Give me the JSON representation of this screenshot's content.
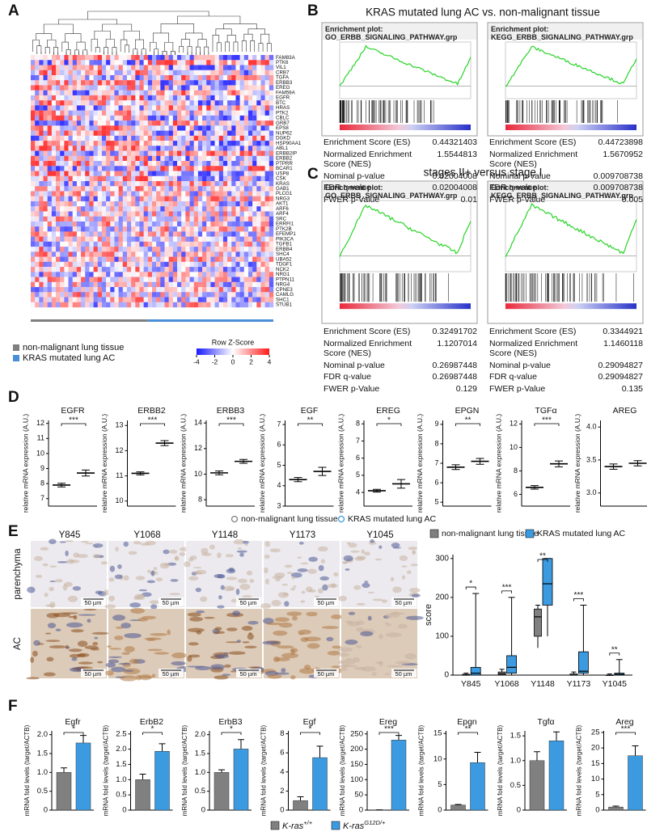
{
  "A": {
    "label": "A",
    "genes": [
      "FAM83A",
      "PTK6",
      "VIL1",
      "CRB7",
      "TGFA",
      "ERBB3",
      "EREG",
      "FAM59A",
      "EGFR",
      "BTC",
      "HRAS",
      "PTK2",
      "CBLC",
      "GRB7",
      "EPS8",
      "NUP62",
      "DGKD",
      "HSP90AA1",
      "ABL1",
      "ERBB2IP",
      "ERBB2",
      "PTPRR",
      "BCAR1",
      "USP8",
      "CSK",
      "KRAS",
      "GAB1",
      "PLCG1",
      "NRG3",
      "AKT1",
      "ARF6",
      "ARF4",
      "SRC",
      "ERRFI1",
      "PTK2B",
      "EFEMP1",
      "PIK3CA",
      "TGFB1",
      "ERBB4",
      "SHC4",
      "UBA52",
      "TDGF1",
      "NCK2",
      "NRG1",
      "PTPN11",
      "NRG4",
      "CPNE3",
      "CAMLG",
      "SHC1",
      "STUB1"
    ],
    "legend": [
      {
        "label": "non-malignant lung tissue",
        "color": "#7f7f7f"
      },
      {
        "label": "KRAS mutated lung AC",
        "color": "#4a8fd6"
      }
    ],
    "zscore": {
      "title": "Row Z-Score",
      "ticks": [
        -4,
        -2,
        0,
        2,
        4
      ]
    }
  },
  "B": {
    "label": "B",
    "title": "KRAS mutated lung AC vs. non-malignant tissue",
    "plots": [
      {
        "title": "Enrichment plot: GO_ERBB_SIGNALING_PATHWAY.grp",
        "rows": [
          [
            "Enrichment Score (ES)",
            "0.44321403"
          ],
          [
            "Normalized Enrichment Score (NES)",
            "1.5544813"
          ],
          [
            "Nominal p-value",
            "0.02004008"
          ],
          [
            "FDR q-value",
            "0.02004008"
          ],
          [
            "FWER p-Value",
            "0.01"
          ]
        ]
      },
      {
        "title": "Enrichment plot: KEGG_ERBB_SIGNALING_PATHWAY.grp",
        "rows": [
          [
            "Enrichment Score (ES)",
            "0.44723898"
          ],
          [
            "Normalized Enrichment Score (NES)",
            "1.5670952"
          ],
          [
            "Nominal p-value",
            "0.009708738"
          ],
          [
            "FDR q-value",
            "0.009708738"
          ],
          [
            "FWER p-Value",
            "0.005"
          ]
        ]
      }
    ]
  },
  "C": {
    "label": "C",
    "title": "stages II+ versus stage I",
    "plots": [
      {
        "title": "Enrichment plot: GO_ERBB_SIGNALING_PATHWAY.grp",
        "rows": [
          [
            "Enrichment Score (ES)",
            "0.32491702"
          ],
          [
            "Normalized Enrichment Score (NES)",
            "1.1207014"
          ],
          [
            "Nominal p-value",
            "0.26987448"
          ],
          [
            "FDR q-value",
            "0.26987448"
          ],
          [
            "FWER p-Value",
            "0.129"
          ]
        ]
      },
      {
        "title": "Enrichment plot: KEGG_ERBB_SIGNALING_PATHWAY.grp",
        "rows": [
          [
            "Enrichment Score (ES)",
            "0.3344921"
          ],
          [
            "Normalized Enrichment Score (NES)",
            "1.1460118"
          ],
          [
            "Nominal p-value",
            "0.29094827"
          ],
          [
            "FDR q-value",
            "0.29094827"
          ],
          [
            "FWER p-Value",
            "0.135"
          ]
        ]
      }
    ]
  },
  "D": {
    "label": "D",
    "ylabel": "relative mRNA expression (A.U.)",
    "legend": [
      {
        "label": "non-malignant lung tissue",
        "color": "#808080"
      },
      {
        "label": "KRAS mutated lung AC",
        "color": "#3c9be0"
      }
    ],
    "plots": [
      {
        "gene": "EGFR",
        "ylim": [
          6.5,
          12.2
        ],
        "yticks": [
          7,
          8,
          9,
          10,
          11,
          12
        ],
        "means": [
          7.9,
          8.7
        ],
        "sem": [
          0.12,
          0.2
        ],
        "sig": "***"
      },
      {
        "gene": "ERBB2",
        "ylim": [
          9.8,
          13.2
        ],
        "yticks": [
          10,
          11,
          12,
          13
        ],
        "means": [
          11.1,
          12.3
        ],
        "sem": [
          0.06,
          0.1
        ],
        "sig": "***"
      },
      {
        "gene": "ERBB3",
        "ylim": [
          7.5,
          14.2
        ],
        "yticks": [
          8,
          10,
          12,
          14
        ],
        "means": [
          10.1,
          11.0
        ],
        "sem": [
          0.15,
          0.15
        ],
        "sig": "***"
      },
      {
        "gene": "EGF",
        "ylim": [
          3,
          7.2
        ],
        "yticks": [
          3,
          4,
          5,
          6,
          7
        ],
        "means": [
          4.3,
          4.7
        ],
        "sem": [
          0.1,
          0.2
        ],
        "sig": "**"
      },
      {
        "gene": "EREG",
        "ylim": [
          3.2,
          8.2
        ],
        "yticks": [
          4,
          5,
          6,
          7,
          8
        ],
        "means": [
          4.1,
          4.5
        ],
        "sem": [
          0.08,
          0.25
        ],
        "sig": "*"
      },
      {
        "gene": "EPGN",
        "ylim": [
          4.8,
          9.2
        ],
        "yticks": [
          5,
          6,
          7,
          8,
          9
        ],
        "means": [
          6.8,
          7.1
        ],
        "sem": [
          0.12,
          0.15
        ],
        "sig": "**"
      },
      {
        "gene": "TGFα",
        "ylim": [
          5,
          12.3
        ],
        "yticks": [
          6,
          8,
          10,
          12
        ],
        "means": [
          6.6,
          8.6
        ],
        "sem": [
          0.15,
          0.25
        ],
        "sig": "***"
      },
      {
        "gene": "AREG",
        "ylim": [
          2.8,
          4.1
        ],
        "yticks": [
          {
            "value": 3,
            "label": "3.0"
          },
          3.5,
          {
            "value": 4,
            "label": "4.0"
          }
        ],
        "means": [
          3.4,
          3.45
        ],
        "sem": [
          0.04,
          0.04
        ]
      }
    ]
  },
  "E": {
    "label": "E",
    "columns": [
      "Y845",
      "Y1068",
      "Y1148",
      "Y1173",
      "Y1045"
    ],
    "rows": [
      "parenchyma",
      "AC"
    ],
    "scale_bar": "50 µm",
    "chart": {
      "ylabel": "score",
      "ylim": [
        0,
        310
      ],
      "yticks": [
        0,
        100,
        200,
        300
      ],
      "categories": [
        "Y845",
        "Y1068",
        "Y1148",
        "Y1173",
        "Y1045"
      ],
      "series": [
        {
          "name": "non-malignant lung tissue",
          "color": "#808080",
          "boxes": [
            [
              0,
              0,
              0,
              2,
              5
            ],
            [
              0,
              0,
              3,
              8,
              15
            ],
            [
              70,
              100,
              150,
              170,
              180
            ],
            [
              0,
              0,
              0,
              3,
              8
            ],
            [
              0,
              0,
              0,
              0,
              3
            ]
          ]
        },
        {
          "name": "KRAS mutated lung AC",
          "color": "#3c9be0",
          "boxes": [
            [
              0,
              0,
              5,
              20,
              210
            ],
            [
              0,
              5,
              20,
              50,
              200
            ],
            [
              100,
              180,
              235,
              300,
              300
            ],
            [
              0,
              5,
              10,
              60,
              180
            ],
            [
              0,
              0,
              2,
              5,
              40
            ]
          ]
        }
      ],
      "sig": [
        "*",
        "***",
        "**",
        "***",
        "**"
      ]
    }
  },
  "F": {
    "label": "F",
    "ylabel": "mRNA fold levels (target/ACTB)",
    "legend": [
      {
        "name": "K-ras",
        "sup": "+/+",
        "color": "#808080"
      },
      {
        "name": "K-ras",
        "sup": "G12D/+",
        "color": "#3c9be0"
      }
    ],
    "plots": [
      {
        "gene": "Egfr",
        "ylim": [
          0,
          2.1
        ],
        "yticks": [
          0,
          0.5,
          {
            "value": 1,
            "label": "1.0"
          },
          1.5,
          {
            "value": 2,
            "label": "2.0"
          }
        ],
        "values": [
          1.0,
          1.78
        ],
        "err": [
          0.12,
          0.2
        ],
        "sig": "*"
      },
      {
        "gene": "ErbB2",
        "ylim": [
          0,
          2.6
        ],
        "yticks": [
          0,
          0.5,
          {
            "value": 1,
            "label": "1.0"
          },
          1.5,
          {
            "value": 2,
            "label": "2.0"
          },
          2.5
        ],
        "values": [
          1.0,
          1.93
        ],
        "err": [
          0.18,
          0.25
        ],
        "sig": "*"
      },
      {
        "gene": "ErbB3",
        "ylim": [
          0,
          2.1
        ],
        "yticks": [
          0,
          0.5,
          {
            "value": 1,
            "label": "1.0"
          },
          1.5,
          {
            "value": 2,
            "label": "2.0"
          }
        ],
        "values": [
          1.0,
          1.62
        ],
        "err": [
          0.07,
          0.25
        ],
        "sig": "*"
      },
      {
        "gene": "Egf",
        "ylim": [
          0,
          8.3
        ],
        "yticks": [
          0,
          2,
          4,
          6,
          8
        ],
        "values": [
          1.0,
          5.5
        ],
        "err": [
          0.4,
          1.2
        ],
        "sig": "*"
      },
      {
        "gene": "Ereg",
        "ylim": [
          0,
          260
        ],
        "yticks": [
          0,
          50,
          100,
          150,
          200,
          250
        ],
        "values": [
          1,
          230
        ],
        "err": [
          0.3,
          15
        ],
        "sig": "***"
      },
      {
        "gene": "Epgn",
        "ylim": [
          0,
          15.5
        ],
        "yticks": [
          0,
          5,
          10,
          15
        ],
        "values": [
          1.0,
          9.3
        ],
        "err": [
          0.1,
          2
        ],
        "sig": "**"
      },
      {
        "gene": "Tgfα",
        "ylim": [
          0,
          1.6
        ],
        "yticks": [
          0,
          0.5,
          {
            "value": 1,
            "label": "1.0"
          },
          1.5
        ],
        "values": [
          1.0,
          1.4
        ],
        "err": [
          0.18,
          0.18
        ]
      },
      {
        "gene": "Areg",
        "ylim": [
          0,
          25.5
        ],
        "yticks": [
          0,
          5,
          10,
          15,
          20,
          25
        ],
        "values": [
          1,
          17.5
        ],
        "err": [
          0.3,
          3.2
        ],
        "sig": "***"
      }
    ]
  }
}
